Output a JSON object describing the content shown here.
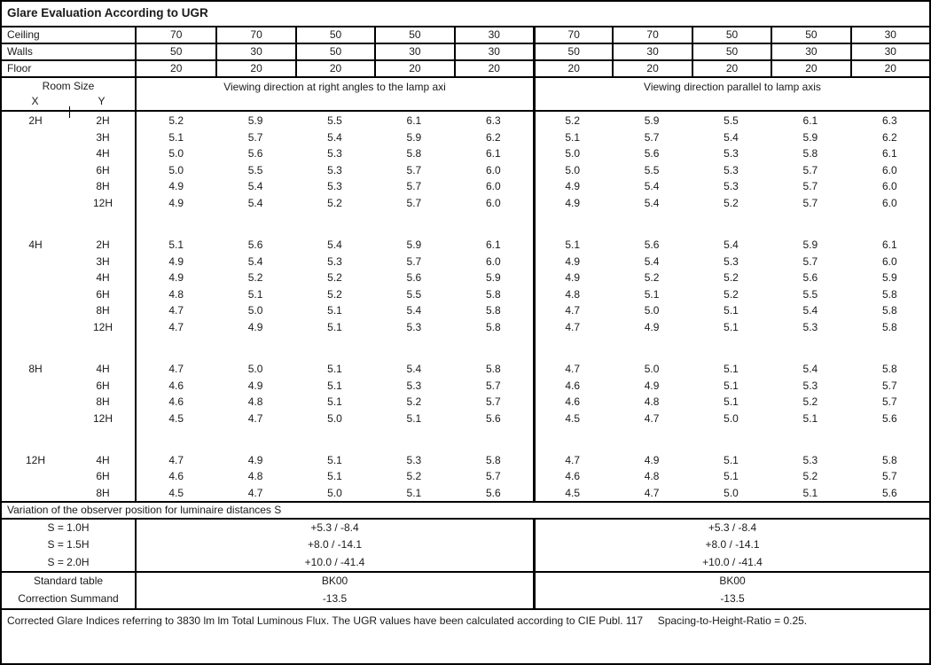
{
  "document": {
    "title": "Glare Evaluation According to UGR",
    "footer": "Corrected Glare Indices referring to 3830 lm lm Total Luminous Flux. The UGR values have been calculated according to CIE Publ. 117     Spacing-to-Height-Ratio = 0.25."
  },
  "colors": {
    "border": "#000000",
    "text": "#1a1a1a",
    "background": "#ffffff"
  },
  "reflectance_table": {
    "rows": [
      {
        "label": "Ceiling",
        "values": [
          "70",
          "70",
          "50",
          "50",
          "30",
          "70",
          "70",
          "50",
          "50",
          "30"
        ]
      },
      {
        "label": "Walls",
        "values": [
          "50",
          "30",
          "50",
          "30",
          "30",
          "50",
          "30",
          "50",
          "30",
          "30"
        ]
      },
      {
        "label": "Floor",
        "values": [
          "20",
          "20",
          "20",
          "20",
          "20",
          "20",
          "20",
          "20",
          "20",
          "20"
        ]
      }
    ]
  },
  "header": {
    "room_size_label": "Room Size",
    "x_label": "X",
    "y_label": "Y",
    "right_angles_label": "Viewing direction at right angles to the lamp axi",
    "parallel_label": "Viewing direction parallel to lamp axis"
  },
  "ugr_table": {
    "groups": [
      {
        "x": "2H",
        "rows": [
          {
            "y": "2H",
            "values": [
              "5.2",
              "5.9",
              "5.5",
              "6.1",
              "6.3",
              "5.2",
              "5.9",
              "5.5",
              "6.1",
              "6.3"
            ]
          },
          {
            "y": "3H",
            "values": [
              "5.1",
              "5.7",
              "5.4",
              "5.9",
              "6.2",
              "5.1",
              "5.7",
              "5.4",
              "5.9",
              "6.2"
            ]
          },
          {
            "y": "4H",
            "values": [
              "5.0",
              "5.6",
              "5.3",
              "5.8",
              "6.1",
              "5.0",
              "5.6",
              "5.3",
              "5.8",
              "6.1"
            ]
          },
          {
            "y": "6H",
            "values": [
              "5.0",
              "5.5",
              "5.3",
              "5.7",
              "6.0",
              "5.0",
              "5.5",
              "5.3",
              "5.7",
              "6.0"
            ]
          },
          {
            "y": "8H",
            "values": [
              "4.9",
              "5.4",
              "5.3",
              "5.7",
              "6.0",
              "4.9",
              "5.4",
              "5.3",
              "5.7",
              "6.0"
            ]
          },
          {
            "y": "12H",
            "values": [
              "4.9",
              "5.4",
              "5.2",
              "5.7",
              "6.0",
              "4.9",
              "5.4",
              "5.2",
              "5.7",
              "6.0"
            ]
          }
        ]
      },
      {
        "x": "4H",
        "rows": [
          {
            "y": "2H",
            "values": [
              "5.1",
              "5.6",
              "5.4",
              "5.9",
              "6.1",
              "5.1",
              "5.6",
              "5.4",
              "5.9",
              "6.1"
            ]
          },
          {
            "y": "3H",
            "values": [
              "4.9",
              "5.4",
              "5.3",
              "5.7",
              "6.0",
              "4.9",
              "5.4",
              "5.3",
              "5.7",
              "6.0"
            ]
          },
          {
            "y": "4H",
            "values": [
              "4.9",
              "5.2",
              "5.2",
              "5.6",
              "5.9",
              "4.9",
              "5.2",
              "5.2",
              "5.6",
              "5.9"
            ]
          },
          {
            "y": "6H",
            "values": [
              "4.8",
              "5.1",
              "5.2",
              "5.5",
              "5.8",
              "4.8",
              "5.1",
              "5.2",
              "5.5",
              "5.8"
            ]
          },
          {
            "y": "8H",
            "values": [
              "4.7",
              "5.0",
              "5.1",
              "5.4",
              "5.8",
              "4.7",
              "5.0",
              "5.1",
              "5.4",
              "5.8"
            ]
          },
          {
            "y": "12H",
            "values": [
              "4.7",
              "4.9",
              "5.1",
              "5.3",
              "5.8",
              "4.7",
              "4.9",
              "5.1",
              "5.3",
              "5.8"
            ]
          }
        ]
      },
      {
        "x": "8H",
        "rows": [
          {
            "y": "4H",
            "values": [
              "4.7",
              "5.0",
              "5.1",
              "5.4",
              "5.8",
              "4.7",
              "5.0",
              "5.1",
              "5.4",
              "5.8"
            ]
          },
          {
            "y": "6H",
            "values": [
              "4.6",
              "4.9",
              "5.1",
              "5.3",
              "5.7",
              "4.6",
              "4.9",
              "5.1",
              "5.3",
              "5.7"
            ]
          },
          {
            "y": "8H",
            "values": [
              "4.6",
              "4.8",
              "5.1",
              "5.2",
              "5.7",
              "4.6",
              "4.8",
              "5.1",
              "5.2",
              "5.7"
            ]
          },
          {
            "y": "12H",
            "values": [
              "4.5",
              "4.7",
              "5.0",
              "5.1",
              "5.6",
              "4.5",
              "4.7",
              "5.0",
              "5.1",
              "5.6"
            ]
          }
        ]
      },
      {
        "x": "12H",
        "rows": [
          {
            "y": "4H",
            "values": [
              "4.7",
              "4.9",
              "5.1",
              "5.3",
              "5.8",
              "4.7",
              "4.9",
              "5.1",
              "5.3",
              "5.8"
            ]
          },
          {
            "y": "6H",
            "values": [
              "4.6",
              "4.8",
              "5.1",
              "5.2",
              "5.7",
              "4.6",
              "4.8",
              "5.1",
              "5.2",
              "5.7"
            ]
          },
          {
            "y": "8H",
            "values": [
              "4.5",
              "4.7",
              "5.0",
              "5.1",
              "5.6",
              "4.5",
              "4.7",
              "5.0",
              "5.1",
              "5.6"
            ]
          }
        ]
      }
    ]
  },
  "variation": {
    "heading": "Variation of the observer position for luminaire distances S",
    "rows": [
      {
        "label": "S = 1.0H",
        "right_angles": "+5.3 / -8.4",
        "parallel": "+5.3 / -8.4"
      },
      {
        "label": "S = 1.5H",
        "right_angles": "+8.0 / -14.1",
        "parallel": "+8.0 / -14.1"
      },
      {
        "label": "S = 2.0H",
        "right_angles": "+10.0 / -41.4",
        "parallel": "+10.0 / -41.4"
      }
    ]
  },
  "summary": {
    "rows": [
      {
        "label": "Standard table",
        "right_angles": "BK00",
        "parallel": "BK00"
      },
      {
        "label": "Correction Summand",
        "right_angles": "-13.5",
        "parallel": "-13.5"
      }
    ]
  }
}
